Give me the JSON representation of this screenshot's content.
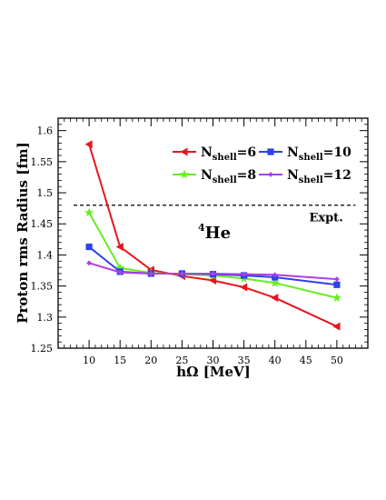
{
  "chart_data": {
    "type": "line",
    "xlabel": "hΩ [MeV]",
    "ylabel": "Proton rms Radius [fm]",
    "xlim": [
      5,
      55
    ],
    "ylim": [
      1.25,
      1.62
    ],
    "x_ticks": [
      10,
      15,
      20,
      25,
      30,
      35,
      40,
      45,
      50
    ],
    "y_ticks": [
      1.25,
      1.3,
      1.35,
      1.4,
      1.45,
      1.5,
      1.55,
      1.6
    ],
    "x": [
      10,
      15,
      20,
      25,
      30,
      35,
      40,
      50
    ],
    "series": [
      {
        "name": "N_shell=6",
        "name_main": "N",
        "name_sub": "shell",
        "name_tail": "=6",
        "color": "#e8141e",
        "marker": "triangle-left",
        "values": [
          1.578,
          1.413,
          1.376,
          1.366,
          1.359,
          1.348,
          1.331,
          1.285
        ]
      },
      {
        "name": "N_shell=8",
        "name_main": "N",
        "name_sub": "shell",
        "name_tail": "=8",
        "color": "#66ee22",
        "marker": "star",
        "values": [
          1.468,
          1.379,
          1.371,
          1.369,
          1.367,
          1.362,
          1.355,
          1.331
        ]
      },
      {
        "name": "N_shell=10",
        "name_main": "N",
        "name_sub": "shell",
        "name_tail": "=10",
        "color": "#2b43e8",
        "marker": "square",
        "values": [
          1.413,
          1.373,
          1.37,
          1.37,
          1.369,
          1.367,
          1.364,
          1.352
        ]
      },
      {
        "name": "N_shell=12",
        "name_main": "N",
        "name_sub": "shell",
        "name_tail": "=12",
        "color": "#b03ee8",
        "marker": "diamond",
        "values": [
          1.387,
          1.372,
          1.37,
          1.37,
          1.37,
          1.369,
          1.368,
          1.361
        ]
      }
    ],
    "reference_line": {
      "label": "Expt.",
      "y": 1.48,
      "style": "dashed"
    },
    "annotation": {
      "main": "He",
      "superscript": "4"
    },
    "legend_position": "top-right",
    "grid": false
  }
}
